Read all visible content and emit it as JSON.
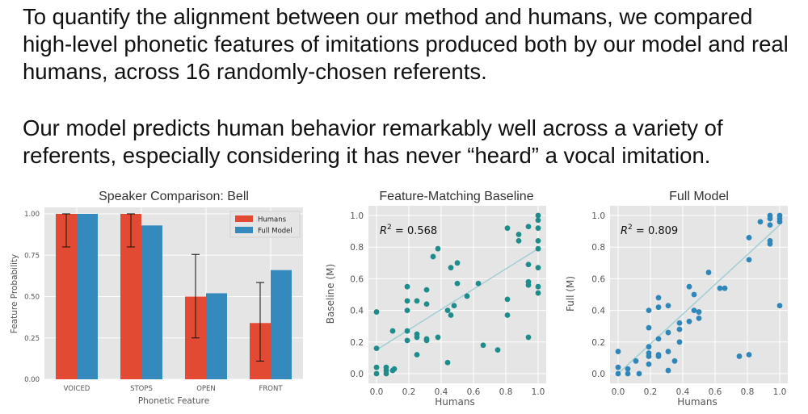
{
  "paragraphs": {
    "p1": "To quantify the alignment between our method and humans, we compared high-level phonetic features of imitations produced both by our model and real humans, across 16 randomly-chosen referents.",
    "p2": "Our model predicts human behavior remarkably well across a variety of referents, especially considering it has never “heard” a vocal imitation."
  },
  "colors": {
    "humans": "#e24a33",
    "full_model": "#348abd",
    "scatter_teal": "#1f8c8c",
    "scatter_blue": "#2e86b9",
    "panel_bg": "#e5e5e5",
    "fit_line": "#a8cfd6"
  },
  "chart_data": [
    {
      "type": "bar",
      "title": "Speaker Comparison: Bell",
      "xlabel": "Phonetic Feature",
      "ylabel": "Feature Probability",
      "ylim": [
        0,
        1.0
      ],
      "yticks": [
        "0.00",
        "0.25",
        "0.50",
        "0.75",
        "1.00"
      ],
      "categories": [
        "VOICED",
        "STOPS",
        "OPEN",
        "FRONT"
      ],
      "series": [
        {
          "name": "Humans",
          "values": [
            1.0,
            1.0,
            0.5,
            0.34
          ],
          "err_low": [
            0.8,
            0.8,
            0.25,
            0.11
          ],
          "err_high": [
            1.0,
            1.0,
            0.755,
            0.585
          ]
        },
        {
          "name": "Full Model",
          "values": [
            1.0,
            0.93,
            0.52,
            0.66
          ]
        }
      ],
      "legend": "top-right"
    },
    {
      "type": "scatter",
      "title": "Feature-Matching Baseline",
      "xlabel": "Humans",
      "ylabel": "Baseline (M)",
      "annotation": "R",
      "annotation_sup": "2",
      "annotation_value": " = 0.568",
      "xticks": [
        "0.0",
        "0.2",
        "0.4",
        "0.6",
        "0.8",
        "1.0"
      ],
      "yticks": [
        "0.0",
        "0.2",
        "0.4",
        "0.6",
        "0.8",
        "1.0"
      ],
      "fit": [
        [
          0.0,
          0.15
        ],
        [
          1.0,
          0.79
        ]
      ],
      "points": [
        [
          0,
          0.39
        ],
        [
          0,
          0.16
        ],
        [
          0,
          0.04
        ],
        [
          0,
          0.0
        ],
        [
          0.06,
          0.04
        ],
        [
          0.06,
          0.0
        ],
        [
          0.06,
          0.02
        ],
        [
          0.1,
          0.02
        ],
        [
          0.11,
          0.03
        ],
        [
          0.1,
          0.27
        ],
        [
          0.19,
          0.21
        ],
        [
          0.19,
          0.46
        ],
        [
          0.19,
          0.55
        ],
        [
          0.19,
          0.4
        ],
        [
          0.19,
          0.27
        ],
        [
          0.25,
          0.46
        ],
        [
          0.25,
          0.25
        ],
        [
          0.25,
          0.23
        ],
        [
          0.25,
          0.12
        ],
        [
          0.31,
          0.53
        ],
        [
          0.31,
          0.22
        ],
        [
          0.31,
          0.21
        ],
        [
          0.31,
          0.44
        ],
        [
          0.35,
          0.74
        ],
        [
          0.38,
          0.79
        ],
        [
          0.38,
          0.23
        ],
        [
          0.44,
          0.4
        ],
        [
          0.44,
          0.07
        ],
        [
          0.46,
          0.67
        ],
        [
          0.46,
          0.37
        ],
        [
          0.48,
          0.43
        ],
        [
          0.5,
          0.57
        ],
        [
          0.5,
          0.7
        ],
        [
          0.56,
          0.49
        ],
        [
          0.63,
          0.57
        ],
        [
          0.66,
          0.18
        ],
        [
          0.75,
          0.15
        ],
        [
          0.81,
          0.92
        ],
        [
          0.81,
          0.47
        ],
        [
          0.81,
          0.37
        ],
        [
          0.88,
          0.84
        ],
        [
          0.88,
          0.88
        ],
        [
          0.94,
          0.93
        ],
        [
          0.94,
          0.69
        ],
        [
          0.94,
          0.58
        ],
        [
          0.94,
          0.56
        ],
        [
          0.94,
          0.23
        ],
        [
          1.0,
          1.0
        ],
        [
          1.0,
          0.97
        ],
        [
          1.0,
          0.92
        ],
        [
          1.0,
          0.84
        ],
        [
          1.0,
          0.67
        ],
        [
          1.0,
          0.55
        ],
        [
          1.0,
          0.51
        ],
        [
          1.0,
          0.79
        ]
      ]
    },
    {
      "type": "scatter",
      "title": "Full Model",
      "xlabel": "Humans",
      "ylabel": "Full (M)",
      "annotation": "R",
      "annotation_sup": "2",
      "annotation_value": " = 0.809",
      "xticks": [
        "0.0",
        "0.2",
        "0.4",
        "0.6",
        "0.8",
        "1.0"
      ],
      "yticks": [
        "0.0",
        "0.2",
        "0.4",
        "0.6",
        "0.8",
        "1.0"
      ],
      "fit": [
        [
          0.0,
          0.0
        ],
        [
          1.0,
          0.94
        ]
      ],
      "points": [
        [
          0,
          0.0
        ],
        [
          0,
          0.04
        ],
        [
          0,
          0.14
        ],
        [
          0.06,
          0.03
        ],
        [
          0.06,
          0.0
        ],
        [
          0.11,
          0.08
        ],
        [
          0.13,
          0.0
        ],
        [
          0.19,
          0.13
        ],
        [
          0.19,
          0.11
        ],
        [
          0.19,
          0.06
        ],
        [
          0.19,
          0.4
        ],
        [
          0.19,
          0.29
        ],
        [
          0.19,
          0.17
        ],
        [
          0.25,
          0.12
        ],
        [
          0.25,
          0.11
        ],
        [
          0.25,
          0.22
        ],
        [
          0.25,
          0.48
        ],
        [
          0.25,
          0.42
        ],
        [
          0.31,
          0.43
        ],
        [
          0.31,
          0.14
        ],
        [
          0.31,
          0.02
        ],
        [
          0.31,
          0.26
        ],
        [
          0.35,
          0.08
        ],
        [
          0.38,
          0.2
        ],
        [
          0.38,
          0.28
        ],
        [
          0.38,
          0.32
        ],
        [
          0.44,
          0.33
        ],
        [
          0.44,
          0.55
        ],
        [
          0.47,
          0.5
        ],
        [
          0.47,
          0.4
        ],
        [
          0.5,
          0.35
        ],
        [
          0.5,
          0.39
        ],
        [
          0.56,
          0.64
        ],
        [
          0.63,
          0.54
        ],
        [
          0.66,
          0.54
        ],
        [
          0.75,
          0.11
        ],
        [
          0.81,
          0.12
        ],
        [
          0.81,
          0.86
        ],
        [
          0.81,
          0.72
        ],
        [
          0.88,
          0.96
        ],
        [
          0.94,
          0.98
        ],
        [
          0.94,
          1.0
        ],
        [
          0.94,
          0.84
        ],
        [
          0.94,
          0.82
        ],
        [
          0.94,
          0.94
        ],
        [
          1.0,
          1.0
        ],
        [
          1.0,
          0.98
        ],
        [
          1.0,
          0.96
        ],
        [
          1.0,
          0.43
        ]
      ]
    }
  ]
}
